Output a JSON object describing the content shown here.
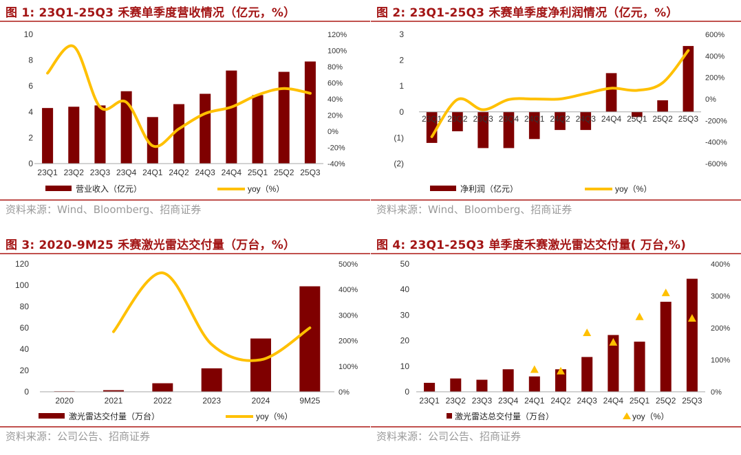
{
  "colors": {
    "bar": "#7F0000",
    "line": "#FFC000",
    "marker": "#FFC000",
    "title": "#A31515",
    "rule": "#C0504D",
    "source": "#9a9a9a"
  },
  "panels": [
    {
      "title": "图 1:  23Q1-25Q3 禾赛单季度营收情况（亿元，%）",
      "source": "资料来源：Wind、Bloomberg、招商证券",
      "legend_bar": "营业收入（亿元）",
      "legend_line": "yoy（%）"
    },
    {
      "title": "图 2:  23Q1-25Q3 禾赛单季度净利润情况（亿元，%）",
      "source": "资料来源：Wind、Bloomberg、招商证券",
      "legend_bar": "净利润（亿元）",
      "legend_line": "yoy（%）"
    },
    {
      "title": "图 3:  2020-9M25 禾赛激光雷达交付量（万台，%）",
      "source": "资料来源：公司公告、招商证券",
      "legend_bar": "激光雷达交付量（万台）",
      "legend_line": "yoy（%）"
    },
    {
      "title": "图 4: 23Q1-25Q3 单季度禾赛激光雷达交付量( 万台,%)",
      "source": "资料来源：公司公告、招商证券",
      "legend_bar": "激光雷达总交付量（万台）",
      "legend_line": "yoy（%）"
    }
  ],
  "chart_data": [
    {
      "type": "bar",
      "categories": [
        "23Q1",
        "23Q2",
        "23Q3",
        "23Q4",
        "24Q1",
        "24Q2",
        "24Q3",
        "24Q4",
        "25Q1",
        "25Q2",
        "25Q3"
      ],
      "series": [
        {
          "name": "营业收入（亿元）",
          "type": "bar",
          "axis": "left",
          "values": [
            4.3,
            4.4,
            4.5,
            5.6,
            3.6,
            4.6,
            5.4,
            7.2,
            5.3,
            7.1,
            7.9
          ]
        },
        {
          "name": "yoy（%）",
          "type": "line",
          "axis": "right",
          "values": [
            72,
            105,
            30,
            36,
            -18,
            3,
            22,
            30,
            45,
            53,
            47
          ]
        }
      ],
      "ylim": [
        0,
        10
      ],
      "yticks": [
        "0",
        "2",
        "4",
        "6",
        "8",
        "10"
      ],
      "y2lim": [
        -40,
        120
      ],
      "y2ticks": [
        "-40%",
        "-20%",
        "0%",
        "20%",
        "40%",
        "60%",
        "80%",
        "100%",
        "120%"
      ],
      "legend": "bottom"
    },
    {
      "type": "bar",
      "categories": [
        "23Q1",
        "23Q2",
        "23Q3",
        "23Q4",
        "24Q1",
        "24Q2",
        "24Q3",
        "24Q4",
        "25Q1",
        "25Q2",
        "25Q3"
      ],
      "series": [
        {
          "name": "净利润（亿元）",
          "type": "bar",
          "axis": "left",
          "values": [
            -1.2,
            -0.75,
            -1.4,
            -1.4,
            -1.05,
            -0.7,
            -0.7,
            1.5,
            -0.2,
            0.45,
            2.55
          ]
        },
        {
          "name": "yoy（%）",
          "type": "line",
          "axis": "right",
          "values": [
            -350,
            -5,
            -100,
            -5,
            0,
            0,
            50,
            100,
            80,
            150,
            450
          ]
        }
      ],
      "ylim": [
        -2,
        3
      ],
      "yticks": [
        "(2)",
        "(1)",
        "0",
        "1",
        "2",
        "3"
      ],
      "y2lim": [
        -600,
        600
      ],
      "y2ticks": [
        "-600%",
        "-400%",
        "-200%",
        "0%",
        "200%",
        "400%",
        "600%"
      ],
      "legend": "bottom"
    },
    {
      "type": "bar",
      "categories": [
        "2020",
        "2021",
        "2022",
        "2023",
        "2024",
        "9M25"
      ],
      "series": [
        {
          "name": "激光雷达交付量（万台）",
          "type": "bar",
          "axis": "left",
          "values": [
            0.5,
            1.5,
            8,
            22,
            50,
            99
          ]
        },
        {
          "name": "yoy（%）",
          "type": "line",
          "axis": "right",
          "values": [
            null,
            235,
            465,
            185,
            125,
            250
          ]
        }
      ],
      "ylim": [
        0,
        120
      ],
      "yticks": [
        "0",
        "20",
        "40",
        "60",
        "80",
        "100",
        "120"
      ],
      "y2lim": [
        0,
        500
      ],
      "y2ticks": [
        "0%",
        "100%",
        "200%",
        "300%",
        "400%",
        "500%"
      ],
      "legend": "bottom"
    },
    {
      "type": "bar",
      "categories": [
        "23Q1",
        "23Q2",
        "23Q3",
        "23Q4",
        "24Q1",
        "24Q2",
        "24Q3",
        "24Q4",
        "25Q1",
        "25Q2",
        "25Q3"
      ],
      "series": [
        {
          "name": "激光雷达总交付量（万台）",
          "type": "bar",
          "axis": "left",
          "values": [
            3.5,
            5.2,
            4.7,
            8.8,
            6,
            8.8,
            13.6,
            22.2,
            19.6,
            35.2,
            44.2
          ]
        },
        {
          "name": "yoy（%）",
          "type": "scatter",
          "axis": "right",
          "values": [
            null,
            null,
            null,
            null,
            70,
            65,
            185,
            155,
            235,
            310,
            230
          ]
        }
      ],
      "ylim": [
        0,
        50
      ],
      "yticks": [
        "0",
        "10",
        "20",
        "30",
        "40",
        "50"
      ],
      "y2lim": [
        0,
        400
      ],
      "y2ticks": [
        "0%",
        "100%",
        "200%",
        "300%",
        "400%"
      ],
      "legend": "bottom"
    }
  ]
}
